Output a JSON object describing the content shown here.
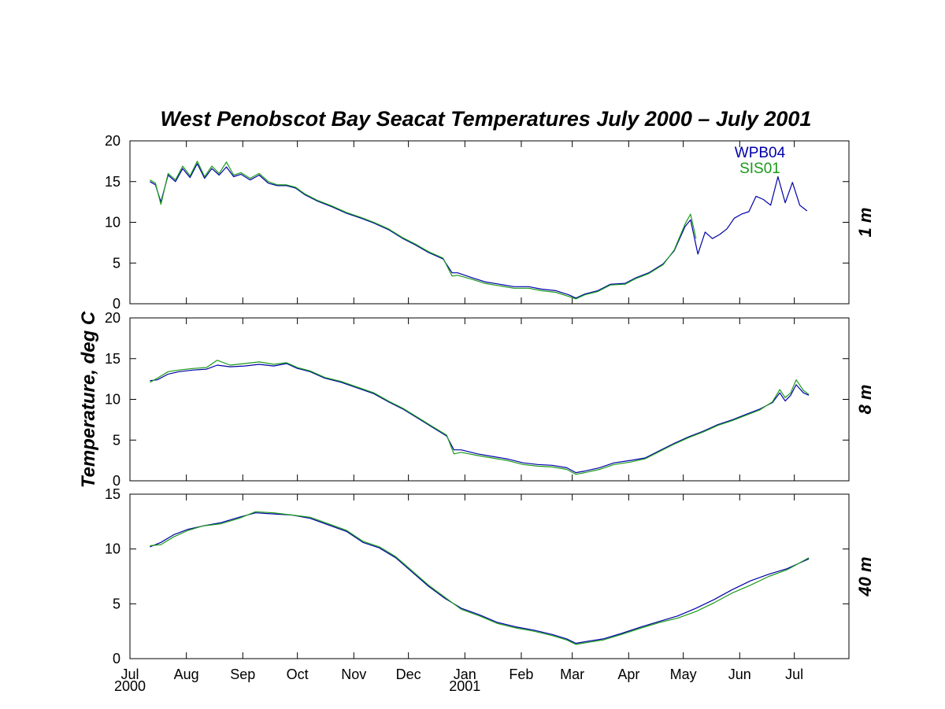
{
  "chart_data": {
    "type": "line",
    "title": "West Penobscot Bay  Seacat Temperatures   July 2000 – July 2001",
    "ylabel": "Temperature, deg C",
    "xlim": [
      "2000-07-01",
      "2001-07-31"
    ],
    "x_ticks": [
      {
        "date": "2000-07-01",
        "label": "Jul",
        "sublabel": "2000"
      },
      {
        "date": "2000-08-01",
        "label": "Aug",
        "sublabel": ""
      },
      {
        "date": "2000-09-01",
        "label": "Sep",
        "sublabel": ""
      },
      {
        "date": "2000-10-01",
        "label": "Oct",
        "sublabel": ""
      },
      {
        "date": "2000-11-01",
        "label": "Nov",
        "sublabel": ""
      },
      {
        "date": "2000-12-01",
        "label": "Dec",
        "sublabel": ""
      },
      {
        "date": "2001-01-01",
        "label": "Jan",
        "sublabel": "2001"
      },
      {
        "date": "2001-02-01",
        "label": "Feb",
        "sublabel": ""
      },
      {
        "date": "2001-03-01",
        "label": "Mar",
        "sublabel": ""
      },
      {
        "date": "2001-04-01",
        "label": "Apr",
        "sublabel": ""
      },
      {
        "date": "2001-05-01",
        "label": "May",
        "sublabel": ""
      },
      {
        "date": "2001-06-01",
        "label": "Jun",
        "sublabel": ""
      },
      {
        "date": "2001-07-01",
        "label": "Jul",
        "sublabel": ""
      }
    ],
    "legend": {
      "placement": "top-right",
      "entries": [
        {
          "name": "WPB04",
          "color": "#0000a8"
        },
        {
          "name": "SIS01",
          "color": "#1a9a1a"
        }
      ]
    },
    "panels": [
      {
        "depth_label": "1 m",
        "ylim": [
          0,
          20
        ],
        "yticks": [
          0,
          5,
          10,
          15,
          20
        ],
        "series": [
          {
            "name": "WPB04",
            "color": "#0000a8",
            "x": [
              "2000-07-12",
              "2000-07-15",
              "2000-07-18",
              "2000-07-22",
              "2000-07-26",
              "2000-07-30",
              "2000-08-03",
              "2000-08-07",
              "2000-08-11",
              "2000-08-15",
              "2000-08-19",
              "2000-08-23",
              "2000-08-27",
              "2000-08-31",
              "2000-09-05",
              "2000-09-10",
              "2000-09-15",
              "2000-09-20",
              "2000-09-25",
              "2000-09-30",
              "2000-10-05",
              "2000-10-12",
              "2000-10-20",
              "2000-10-28",
              "2000-11-05",
              "2000-11-12",
              "2000-11-20",
              "2000-11-28",
              "2000-12-05",
              "2000-12-12",
              "2000-12-20",
              "2000-12-25",
              "2000-12-28",
              "2001-01-05",
              "2001-01-12",
              "2001-01-20",
              "2001-01-28",
              "2001-02-05",
              "2001-02-12",
              "2001-02-20",
              "2001-02-27",
              "2001-03-03",
              "2001-03-08",
              "2001-03-15",
              "2001-03-22",
              "2001-03-30",
              "2001-04-05",
              "2001-04-12",
              "2001-04-20",
              "2001-04-26",
              "2001-05-02",
              "2001-05-05",
              "2001-05-09",
              "2001-05-13",
              "2001-05-17",
              "2001-05-21",
              "2001-05-25",
              "2001-05-29",
              "2001-06-02",
              "2001-06-06",
              "2001-06-10",
              "2001-06-14",
              "2001-06-18",
              "2001-06-22",
              "2001-06-26",
              "2001-06-30",
              "2001-07-04",
              "2001-07-08"
            ],
            "y": [
              15,
              14.6,
              12.5,
              15.8,
              15,
              16.6,
              15.5,
              17.2,
              15.4,
              16.6,
              15.8,
              16.8,
              15.6,
              15.9,
              15.2,
              15.8,
              14.8,
              14.5,
              14.5,
              14.2,
              13.4,
              12.6,
              11.9,
              11.1,
              10.5,
              9.9,
              9.1,
              8,
              7.2,
              6.3,
              5.5,
              3.8,
              3.8,
              3.2,
              2.7,
              2.4,
              2.1,
              2.1,
              1.8,
              1.6,
              1.1,
              0.7,
              1.2,
              1.6,
              2.4,
              2.5,
              3.2,
              3.8,
              4.9,
              6.5,
              9.5,
              10.3,
              6.1,
              8.8,
              8,
              8.5,
              9.2,
              10.5,
              11,
              11.3,
              13.2,
              12.8,
              12.1,
              15.6,
              12.4,
              14.9,
              12.1,
              11.4
            ]
          },
          {
            "name": "SIS01",
            "color": "#1a9a1a",
            "x": [
              "2000-07-12",
              "2000-07-15",
              "2000-07-18",
              "2000-07-22",
              "2000-07-26",
              "2000-07-30",
              "2000-08-03",
              "2000-08-07",
              "2000-08-11",
              "2000-08-15",
              "2000-08-19",
              "2000-08-23",
              "2000-08-27",
              "2000-08-31",
              "2000-09-05",
              "2000-09-10",
              "2000-09-15",
              "2000-09-20",
              "2000-09-25",
              "2000-09-30",
              "2000-10-05",
              "2000-10-12",
              "2000-10-20",
              "2000-10-28",
              "2000-11-05",
              "2000-11-12",
              "2000-11-20",
              "2000-11-28",
              "2000-12-05",
              "2000-12-12",
              "2000-12-20",
              "2000-12-25",
              "2000-12-28",
              "2001-01-05",
              "2001-01-12",
              "2001-01-20",
              "2001-01-28",
              "2001-02-05",
              "2001-02-12",
              "2001-02-20",
              "2001-02-27",
              "2001-03-03",
              "2001-03-08",
              "2001-03-15",
              "2001-03-22",
              "2001-03-30",
              "2001-04-05",
              "2001-04-12",
              "2001-04-20",
              "2001-04-26",
              "2001-05-02",
              "2001-05-05",
              "2001-05-08"
            ],
            "y": [
              15.2,
              14.8,
              12.2,
              16,
              15.2,
              16.9,
              15.7,
              17.5,
              15.6,
              16.9,
              16,
              17.4,
              15.8,
              16.1,
              15.4,
              16,
              15,
              14.6,
              14.6,
              14.3,
              13.5,
              12.7,
              12,
              11.2,
              10.6,
              10,
              9.2,
              8.1,
              7.3,
              6.4,
              5.6,
              3.4,
              3.5,
              3,
              2.5,
              2.2,
              1.9,
              1.9,
              1.6,
              1.4,
              0.9,
              0.6,
              1.1,
              1.5,
              2.3,
              2.4,
              3.1,
              3.7,
              4.8,
              6.6,
              9.8,
              11,
              8
            ]
          }
        ]
      },
      {
        "depth_label": "8 m",
        "ylim": [
          0,
          20
        ],
        "yticks": [
          0,
          5,
          10,
          15,
          20
        ],
        "series": [
          {
            "name": "WPB04",
            "color": "#0000a8",
            "x": [
              "2000-07-12",
              "2000-07-16",
              "2000-07-22",
              "2000-07-28",
              "2000-08-05",
              "2000-08-12",
              "2000-08-18",
              "2000-08-25",
              "2000-09-02",
              "2000-09-10",
              "2000-09-18",
              "2000-09-25",
              "2000-10-01",
              "2000-10-08",
              "2000-10-16",
              "2000-10-25",
              "2000-11-03",
              "2000-11-12",
              "2000-11-20",
              "2000-11-28",
              "2000-12-06",
              "2000-12-14",
              "2000-12-22",
              "2000-12-26",
              "2000-12-30",
              "2001-01-08",
              "2001-01-16",
              "2001-01-24",
              "2001-02-02",
              "2001-02-10",
              "2001-02-18",
              "2001-02-26",
              "2001-03-03",
              "2001-03-08",
              "2001-03-16",
              "2001-03-24",
              "2001-04-02",
              "2001-04-10",
              "2001-04-18",
              "2001-04-26",
              "2001-05-04",
              "2001-05-12",
              "2001-05-20",
              "2001-05-28",
              "2001-06-05",
              "2001-06-12",
              "2001-06-19",
              "2001-06-23",
              "2001-06-26",
              "2001-06-29",
              "2001-07-02",
              "2001-07-06",
              "2001-07-09"
            ],
            "y": [
              12.3,
              12.4,
              13.1,
              13.4,
              13.6,
              13.7,
              14.2,
              14,
              14.1,
              14.3,
              14.1,
              14.4,
              13.8,
              13.4,
              12.6,
              12.1,
              11.4,
              10.7,
              9.7,
              8.8,
              7.7,
              6.6,
              5.5,
              3.8,
              3.8,
              3.3,
              3,
              2.7,
              2.2,
              2,
              1.9,
              1.6,
              1,
              1.2,
              1.6,
              2.2,
              2.5,
              2.8,
              3.7,
              4.6,
              5.4,
              6.1,
              6.9,
              7.5,
              8.2,
              8.8,
              9.6,
              10.8,
              9.8,
              10.5,
              11.8,
              10.8,
              10.5
            ]
          },
          {
            "name": "SIS01",
            "color": "#1a9a1a",
            "x": [
              "2000-07-12",
              "2000-07-16",
              "2000-07-22",
              "2000-07-28",
              "2000-08-05",
              "2000-08-12",
              "2000-08-18",
              "2000-08-25",
              "2000-09-02",
              "2000-09-10",
              "2000-09-18",
              "2000-09-25",
              "2000-10-01",
              "2000-10-08",
              "2000-10-16",
              "2000-10-25",
              "2000-11-03",
              "2000-11-12",
              "2000-11-20",
              "2000-11-28",
              "2000-12-06",
              "2000-12-14",
              "2000-12-22",
              "2000-12-26",
              "2000-12-30",
              "2001-01-08",
              "2001-01-16",
              "2001-01-24",
              "2001-02-02",
              "2001-02-10",
              "2001-02-18",
              "2001-02-26",
              "2001-03-03",
              "2001-03-08",
              "2001-03-16",
              "2001-03-24",
              "2001-04-02",
              "2001-04-10",
              "2001-04-18",
              "2001-04-26",
              "2001-05-04",
              "2001-05-12",
              "2001-05-20",
              "2001-05-28",
              "2001-06-05",
              "2001-06-12",
              "2001-06-19",
              "2001-06-23",
              "2001-06-26",
              "2001-06-29",
              "2001-07-02",
              "2001-07-06",
              "2001-07-09"
            ],
            "y": [
              12.1,
              12.6,
              13.4,
              13.6,
              13.8,
              13.9,
              14.8,
              14.2,
              14.4,
              14.6,
              14.3,
              14.5,
              13.9,
              13.5,
              12.7,
              12.2,
              11.5,
              10.8,
              9.8,
              8.9,
              7.8,
              6.7,
              5.6,
              3.3,
              3.5,
              3.1,
              2.8,
              2.5,
              2,
              1.8,
              1.7,
              1.4,
              0.8,
              1,
              1.4,
              2,
              2.3,
              2.7,
              3.6,
              4.5,
              5.3,
              6,
              6.8,
              7.4,
              8.1,
              8.7,
              9.7,
              11.2,
              10.2,
              10.8,
              12.4,
              11.1,
              10.6
            ]
          }
        ]
      },
      {
        "depth_label": "40 m",
        "ylim": [
          0,
          15
        ],
        "yticks": [
          0,
          5,
          10,
          15
        ],
        "series": [
          {
            "name": "WPB04",
            "color": "#0000a8",
            "x": [
              "2000-07-12",
              "2000-07-18",
              "2000-07-25",
              "2000-08-02",
              "2000-08-10",
              "2000-08-20",
              "2000-08-30",
              "2000-09-08",
              "2000-09-18",
              "2000-09-28",
              "2000-10-08",
              "2000-10-18",
              "2000-10-28",
              "2000-11-06",
              "2000-11-15",
              "2000-11-24",
              "2000-12-03",
              "2000-12-12",
              "2000-12-21",
              "2000-12-30",
              "2001-01-09",
              "2001-01-19",
              "2001-01-29",
              "2001-02-08",
              "2001-02-18",
              "2001-02-26",
              "2001-03-03",
              "2001-03-10",
              "2001-03-18",
              "2001-03-28",
              "2001-04-08",
              "2001-04-18",
              "2001-04-28",
              "2001-05-08",
              "2001-05-18",
              "2001-05-28",
              "2001-06-07",
              "2001-06-17",
              "2001-06-27",
              "2001-07-09"
            ],
            "y": [
              10.2,
              10.6,
              11.3,
              11.8,
              12.1,
              12.4,
              12.9,
              13.3,
              13.2,
              13.1,
              12.8,
              12.2,
              11.6,
              10.6,
              10.1,
              9.2,
              7.9,
              6.6,
              5.5,
              4.6,
              4,
              3.3,
              2.9,
              2.6,
              2.2,
              1.8,
              1.4,
              1.6,
              1.8,
              2.3,
              2.9,
              3.4,
              3.9,
              4.6,
              5.4,
              6.3,
              7.1,
              7.7,
              8.2,
              9.1
            ]
          },
          {
            "name": "SIS01",
            "color": "#1a9a1a",
            "x": [
              "2000-07-12",
              "2000-07-18",
              "2000-07-25",
              "2000-08-02",
              "2000-08-10",
              "2000-08-20",
              "2000-08-30",
              "2000-09-08",
              "2000-09-18",
              "2000-09-28",
              "2000-10-08",
              "2000-10-18",
              "2000-10-28",
              "2000-11-06",
              "2000-11-15",
              "2000-11-24",
              "2000-12-03",
              "2000-12-12",
              "2000-12-21",
              "2000-12-30",
              "2001-01-09",
              "2001-01-19",
              "2001-01-29",
              "2001-02-08",
              "2001-02-18",
              "2001-02-26",
              "2001-03-03",
              "2001-03-10",
              "2001-03-18",
              "2001-03-28",
              "2001-04-08",
              "2001-04-18",
              "2001-04-28",
              "2001-05-08",
              "2001-05-18",
              "2001-05-28",
              "2001-06-07",
              "2001-06-17",
              "2001-06-27",
              "2001-07-09"
            ],
            "y": [
              10.3,
              10.4,
              11.1,
              11.7,
              12.1,
              12.3,
              12.8,
              13.4,
              13.3,
              13.1,
              12.9,
              12.3,
              11.7,
              10.7,
              10.2,
              9.3,
              8,
              6.7,
              5.6,
              4.5,
              3.9,
              3.2,
              2.8,
              2.5,
              2.1,
              1.7,
              1.3,
              1.5,
              1.7,
              2.2,
              2.8,
              3.3,
              3.7,
              4.3,
              5.1,
              6,
              6.7,
              7.5,
              8.1,
              9.2
            ]
          }
        ]
      }
    ]
  }
}
